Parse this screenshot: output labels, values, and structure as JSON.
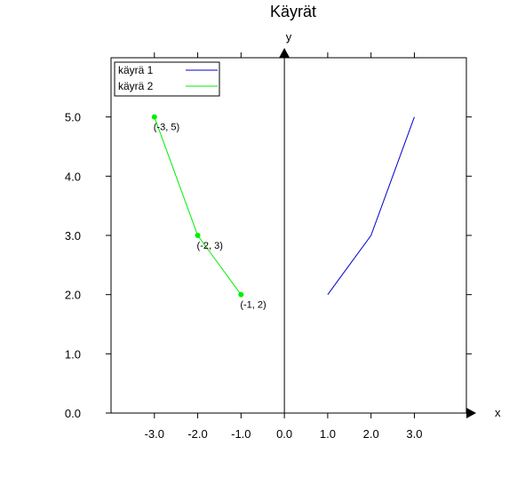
{
  "chart_data": {
    "type": "line",
    "title": "Käyrät",
    "xlabel": "x",
    "ylabel": "y",
    "xlim": [
      -4,
      4.2
    ],
    "ylim": [
      0,
      6
    ],
    "xticks": [
      "-3.0",
      "-2.0",
      "-1.0",
      "0.0",
      "1.0",
      "2.0",
      "3.0"
    ],
    "xtick_values": [
      -3,
      -2,
      -1,
      0,
      1,
      2,
      3
    ],
    "yticks": [
      "0.0",
      "1.0",
      "2.0",
      "3.0",
      "4.0",
      "5.0"
    ],
    "ytick_values": [
      0,
      1,
      2,
      3,
      4,
      5
    ],
    "grid": false,
    "legend_position": "top-left",
    "series": [
      {
        "name": "käyrä 1",
        "color": "#0000cc",
        "markers": false,
        "points": [
          [
            1,
            2
          ],
          [
            2,
            3
          ],
          [
            3,
            5
          ]
        ]
      },
      {
        "name": "käyrä 2",
        "color": "#00ee00",
        "markers": true,
        "points": [
          [
            -3,
            5
          ],
          [
            -2,
            3
          ],
          [
            -1,
            2
          ]
        ],
        "point_labels": [
          "(-3, 5)",
          "(-2, 3)",
          "(-1, 2)"
        ]
      }
    ]
  }
}
